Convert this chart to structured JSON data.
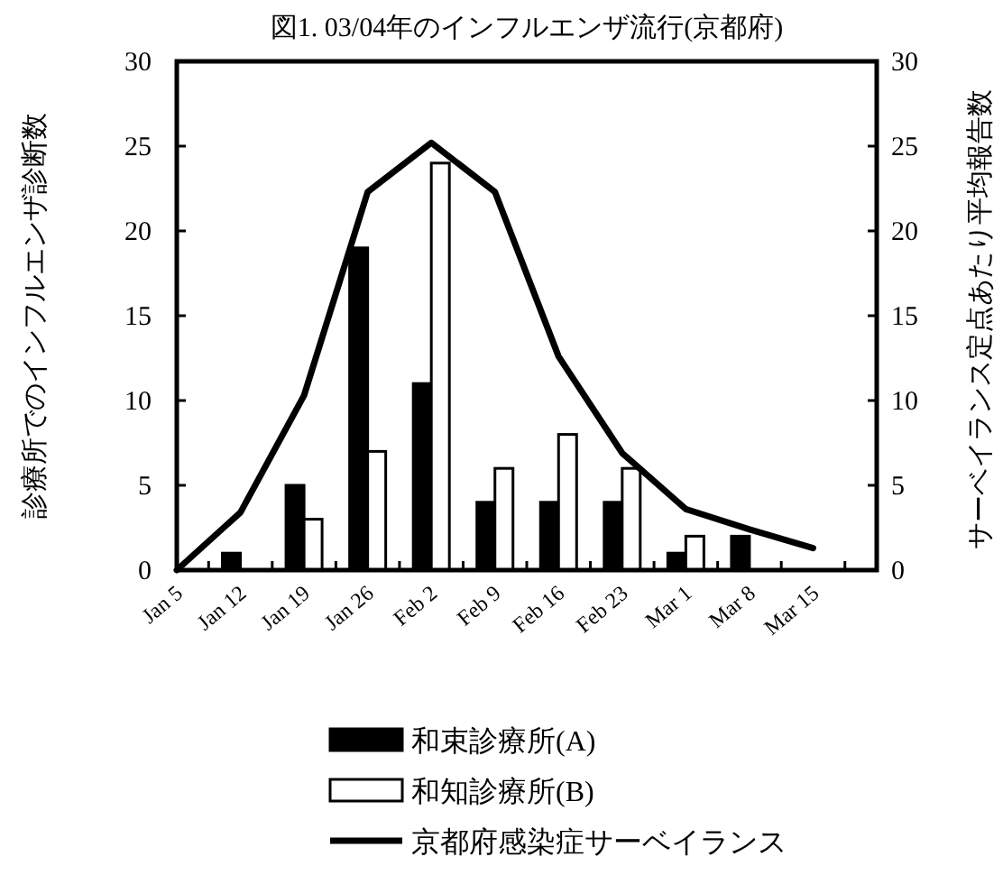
{
  "chart_data": {
    "type": "bar",
    "title": "図1. 03/04年のインフルエンザ流行(京都府)",
    "ylabel": "診療所でのインフルエンザ診断数",
    "y2label": "サーベイランス定点あたり平均報告数",
    "categories": [
      "Jan 5",
      "Jan 12",
      "Jan 19",
      "Jan 26",
      "Feb 2",
      "Feb 9",
      "Feb 16",
      "Feb 23",
      "Mar 1",
      "Mar 8",
      "Mar 15"
    ],
    "series": [
      {
        "name": "和束診療所(A)",
        "color": "#000000",
        "values": [
          0,
          1,
          5,
          19,
          11,
          4,
          4,
          4,
          1,
          2,
          0
        ]
      },
      {
        "name": "和知診療所(B)",
        "color": "#ffffff",
        "values": [
          0,
          0,
          3,
          7,
          24,
          6,
          8,
          6,
          2,
          0,
          0
        ]
      },
      {
        "name": "京都府感染症サーベイランス",
        "type": "line",
        "axis": "y2",
        "color": "#000000",
        "values": [
          0,
          3.4,
          10.3,
          22.3,
          25.2,
          22.3,
          12.6,
          6.9,
          3.6,
          2.4,
          1.3
        ]
      }
    ],
    "ylim": [
      0,
      30
    ],
    "yticks": [
      0,
      5,
      10,
      15,
      20,
      25,
      30
    ],
    "y2lim": [
      0,
      30
    ],
    "y2ticks": [
      0,
      5,
      10,
      15,
      20,
      25,
      30
    ],
    "legend": "bottom"
  }
}
